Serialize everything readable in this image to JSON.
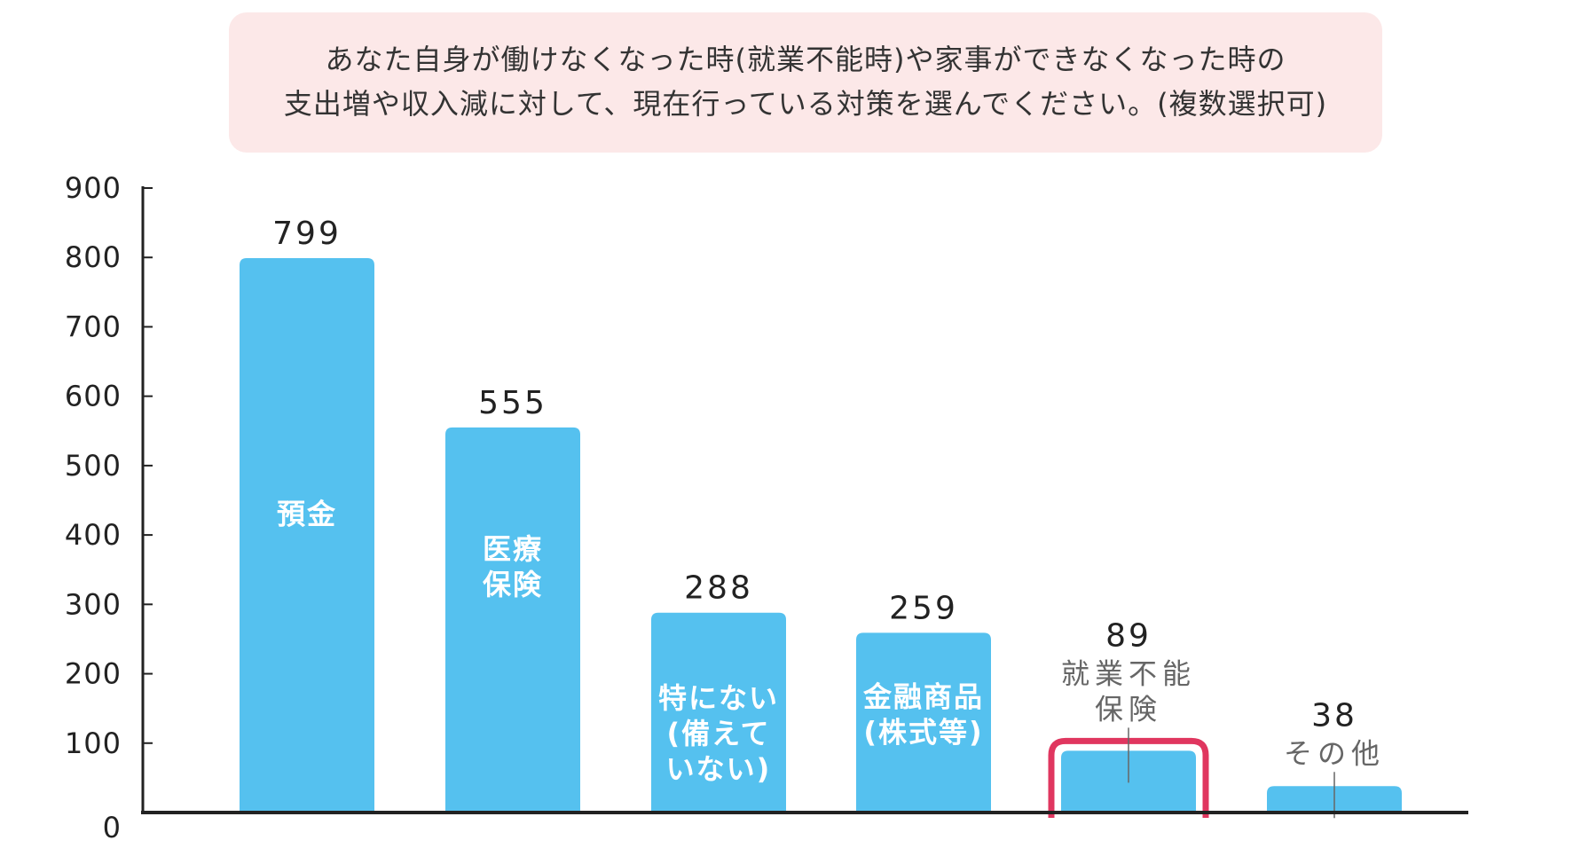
{
  "question": {
    "line1": "あなた自身が働けなくなった時(就業不能時)や家事ができなくなった時の",
    "line2": "支出増や収入減に対して、現在行っている対策を選んでください。(複数選択可)"
  },
  "colors": {
    "bar": "#55c1ef",
    "highlight": "#e0365f",
    "question_bg": "#fce8e8",
    "axis": "#222222"
  },
  "chart_data": {
    "type": "bar",
    "ylim": [
      0,
      900
    ],
    "yticks": [
      "0",
      "100",
      "200",
      "300",
      "400",
      "500",
      "600",
      "700",
      "800",
      "900"
    ],
    "grid": false,
    "categories": [
      {
        "lines": [
          "預金"
        ],
        "label_position": "inside"
      },
      {
        "lines": [
          "医療",
          "保険"
        ],
        "label_position": "inside"
      },
      {
        "lines": [
          "特にない",
          "(備えて",
          "いない)"
        ],
        "label_position": "inside"
      },
      {
        "lines": [
          "金融商品",
          "(株式等)"
        ],
        "label_position": "inside"
      },
      {
        "lines": [
          "就業不能",
          "保険"
        ],
        "label_position": "above",
        "highlighted": true
      },
      {
        "lines": [
          "その他"
        ],
        "label_position": "above"
      }
    ],
    "values": [
      799,
      555,
      288,
      259,
      89,
      38
    ],
    "value_labels": [
      "799",
      "555",
      "288",
      "259",
      "89",
      "38"
    ]
  }
}
